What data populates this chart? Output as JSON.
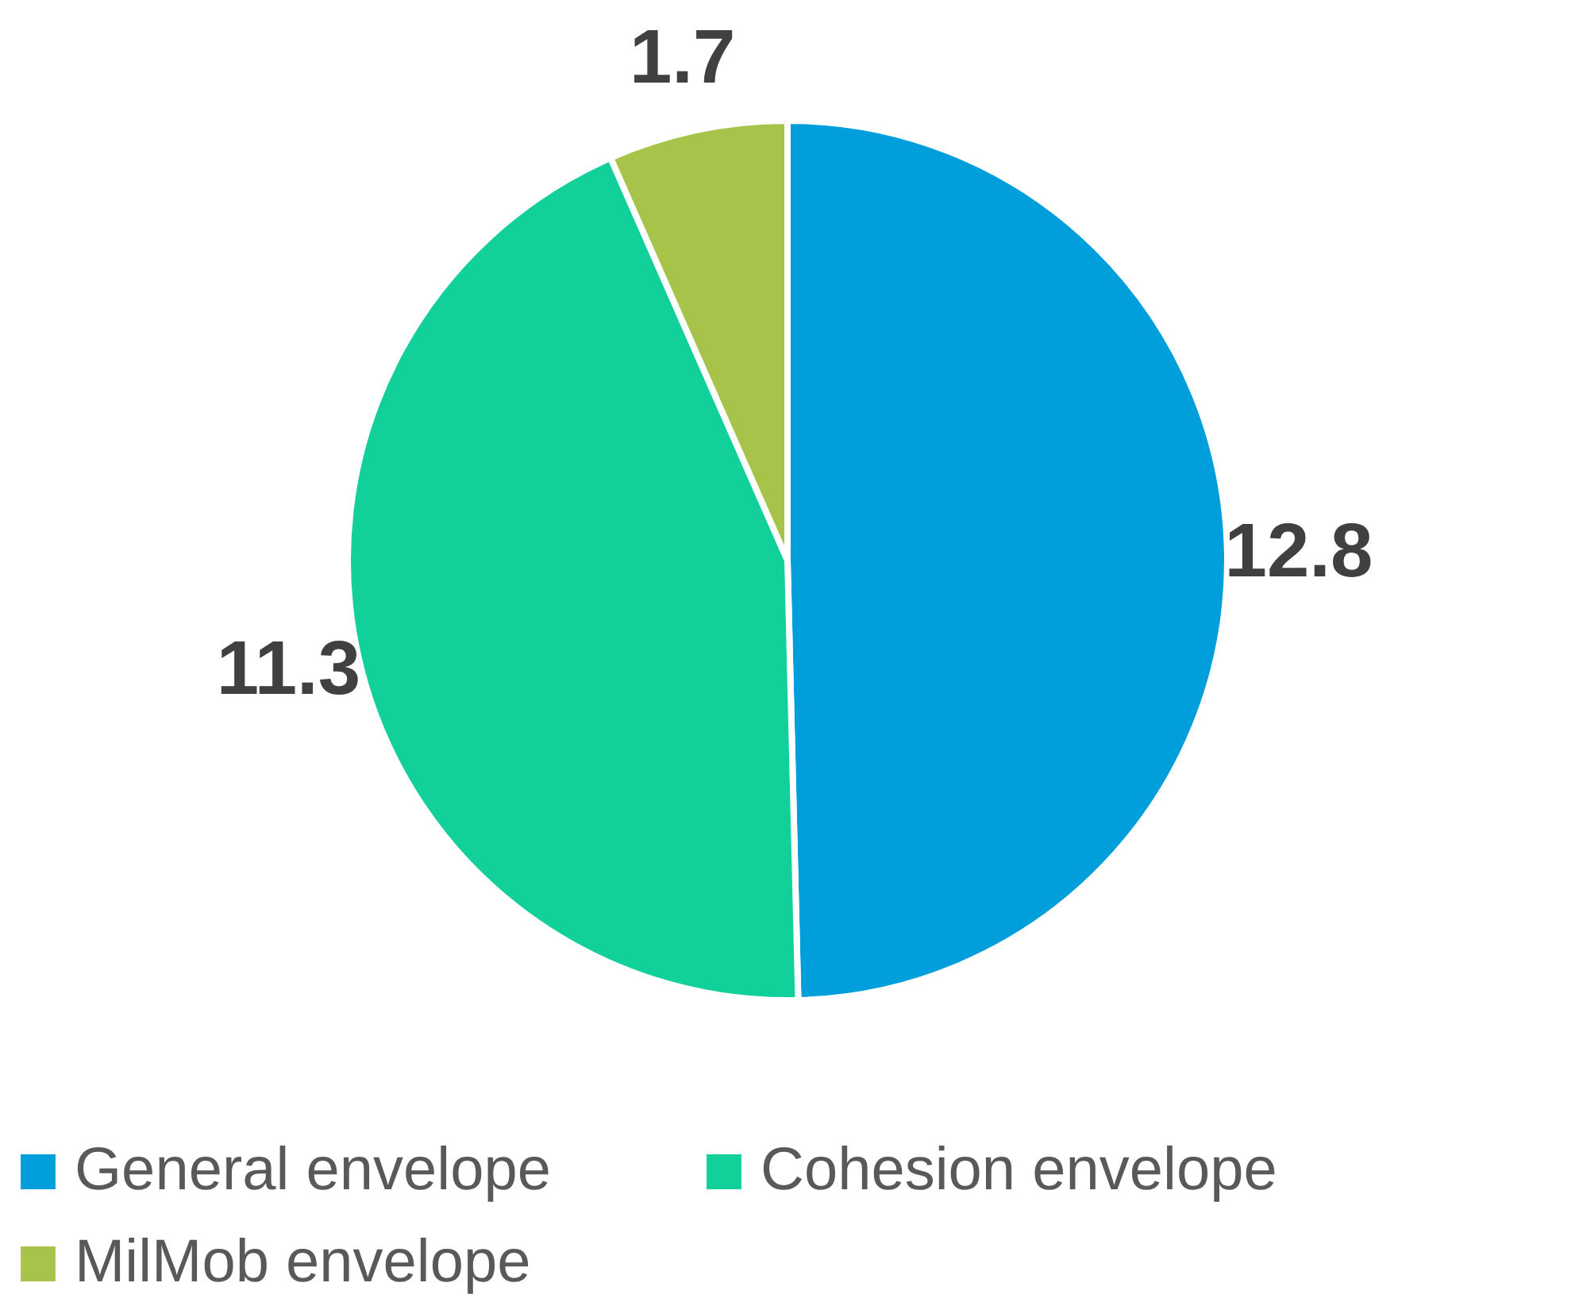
{
  "chart_data": {
    "type": "pie",
    "categories": [
      "General envelope",
      "Cohesion envelope",
      "MilMob envelope"
    ],
    "values": [
      12.8,
      11.3,
      1.7
    ],
    "colors": [
      "#009fdb",
      "#12d09a",
      "#a8c34a"
    ],
    "data_labels": true,
    "legend": "bottom"
  }
}
